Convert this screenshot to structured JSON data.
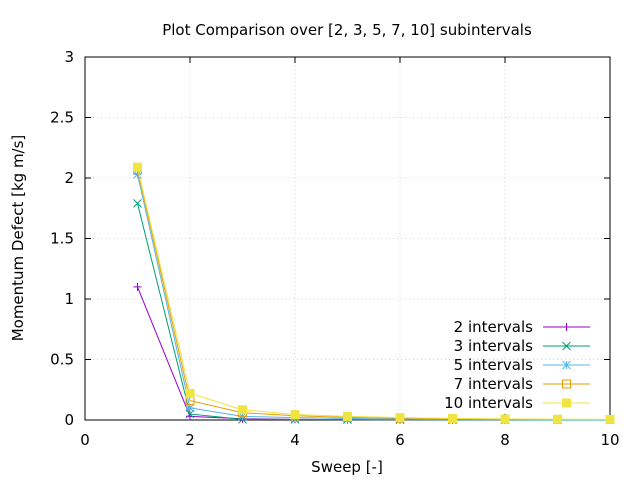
{
  "chart_data": {
    "type": "line",
    "title": "Plot Comparison over [2, 3, 5, 7, 10] subintervals",
    "xlabel": "Sweep [-]",
    "ylabel": "Momentum Defect [kg m/s]",
    "xlim": [
      0,
      10
    ],
    "ylim": [
      0,
      3
    ],
    "xticks": [
      0,
      2,
      4,
      6,
      8,
      10
    ],
    "yticks": [
      0,
      0.5,
      1,
      1.5,
      2,
      2.5,
      3
    ],
    "grid": true,
    "legend_position": "bottom-right",
    "series": [
      {
        "name": "2 intervals",
        "color": "#9400d3",
        "marker": "plus",
        "x": [
          1,
          2,
          3,
          4,
          5,
          6,
          7,
          8,
          9,
          10
        ],
        "y": [
          1.1,
          0.03,
          0.01,
          0.005,
          0.003,
          0.002,
          0.001,
          0.001,
          0.0005,
          0.0005
        ]
      },
      {
        "name": "3 intervals",
        "color": "#009e73",
        "marker": "cross",
        "x": [
          1,
          2,
          3,
          4,
          5,
          6,
          7,
          8,
          9,
          10
        ],
        "y": [
          1.79,
          0.05,
          0.005,
          0.005,
          0.003,
          0.002,
          0.001,
          0.001,
          0.0005,
          0.0005
        ]
      },
      {
        "name": "5 intervals",
        "color": "#56b4e9",
        "marker": "star",
        "x": [
          1,
          2,
          3,
          4,
          5,
          6,
          7,
          8,
          9,
          10
        ],
        "y": [
          2.03,
          0.1,
          0.03,
          0.02,
          0.012,
          0.008,
          0.005,
          0.004,
          0.003,
          0.002
        ]
      },
      {
        "name": "7 intervals",
        "color": "#e69f00",
        "marker": "square",
        "x": [
          1,
          2,
          3,
          4,
          5,
          6,
          7,
          8,
          9,
          10
        ],
        "y": [
          2.07,
          0.16,
          0.06,
          0.035,
          0.022,
          0.015,
          0.01,
          0.007,
          0.005,
          0.004
        ]
      },
      {
        "name": "10 intervals",
        "color": "#f0e442",
        "marker": "filled-square",
        "x": [
          1,
          2,
          3,
          4,
          5,
          6,
          7,
          8,
          9,
          10
        ],
        "y": [
          2.09,
          0.22,
          0.085,
          0.045,
          0.03,
          0.02,
          0.013,
          0.009,
          0.006,
          0.005
        ]
      }
    ]
  }
}
